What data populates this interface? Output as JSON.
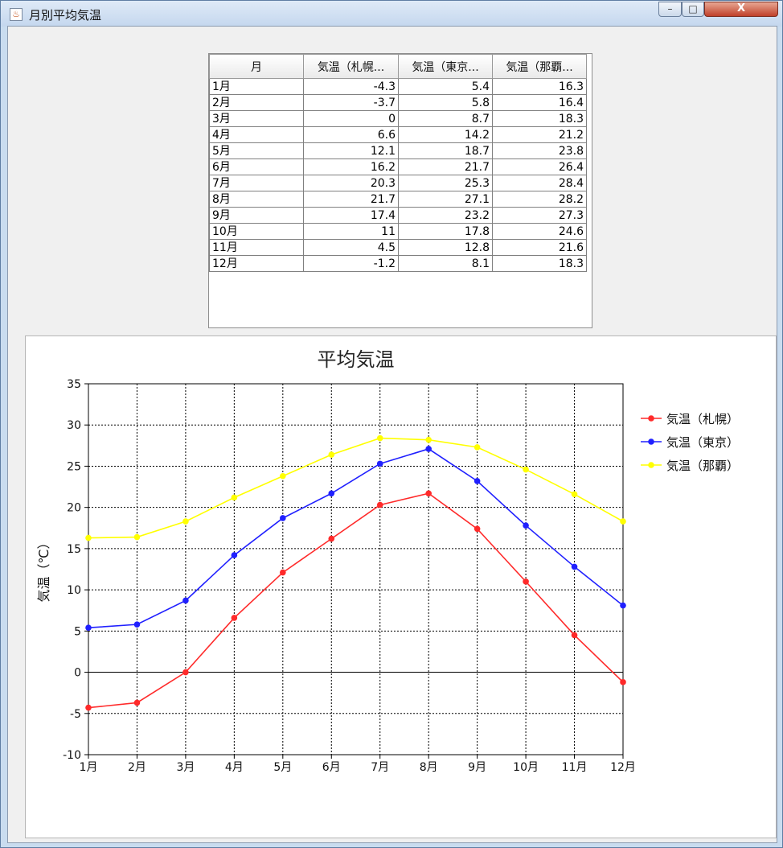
{
  "window": {
    "title": "月別平均気温",
    "icon": "java-cup-icon",
    "controls": {
      "minimize": "–",
      "maximize": "□",
      "close": "X"
    }
  },
  "table": {
    "headers": [
      "月",
      "気温（札幌...",
      "気温（東京...",
      "気温（那覇..."
    ],
    "rows": [
      [
        "1月",
        "-4.3",
        "5.4",
        "16.3"
      ],
      [
        "2月",
        "-3.7",
        "5.8",
        "16.4"
      ],
      [
        "3月",
        "0",
        "8.7",
        "18.3"
      ],
      [
        "4月",
        "6.6",
        "14.2",
        "21.2"
      ],
      [
        "5月",
        "12.1",
        "18.7",
        "23.8"
      ],
      [
        "6月",
        "16.2",
        "21.7",
        "26.4"
      ],
      [
        "7月",
        "20.3",
        "25.3",
        "28.4"
      ],
      [
        "8月",
        "21.7",
        "27.1",
        "28.2"
      ],
      [
        "9月",
        "17.4",
        "23.2",
        "27.3"
      ],
      [
        "10月",
        "11",
        "17.8",
        "24.6"
      ],
      [
        "11月",
        "4.5",
        "12.8",
        "21.6"
      ],
      [
        "12月",
        "-1.2",
        "8.1",
        "18.3"
      ]
    ]
  },
  "chart_data": {
    "type": "line",
    "title": "平均気温",
    "ylabel": "気温（℃）",
    "xlabel": "",
    "categories": [
      "1月",
      "2月",
      "3月",
      "4月",
      "5月",
      "6月",
      "7月",
      "8月",
      "9月",
      "10月",
      "11月",
      "12月"
    ],
    "ylim": [
      -10,
      35
    ],
    "yticks": [
      -10,
      -5,
      0,
      5,
      10,
      15,
      20,
      25,
      30,
      35
    ],
    "grid": true,
    "legend_position": "right",
    "series": [
      {
        "name": "気温（札幌）",
        "color": "#ff2a2a",
        "values": [
          -4.3,
          -3.7,
          0,
          6.6,
          12.1,
          16.2,
          20.3,
          21.7,
          17.4,
          11,
          4.5,
          -1.2
        ]
      },
      {
        "name": "気温（東京）",
        "color": "#2020ff",
        "values": [
          5.4,
          5.8,
          8.7,
          14.2,
          18.7,
          21.7,
          25.3,
          27.1,
          23.2,
          17.8,
          12.8,
          8.1
        ]
      },
      {
        "name": "気温（那覇）",
        "color": "#ffff00",
        "values": [
          16.3,
          16.4,
          18.3,
          21.2,
          23.8,
          26.4,
          28.4,
          28.2,
          27.3,
          24.6,
          21.6,
          18.3
        ]
      }
    ]
  }
}
